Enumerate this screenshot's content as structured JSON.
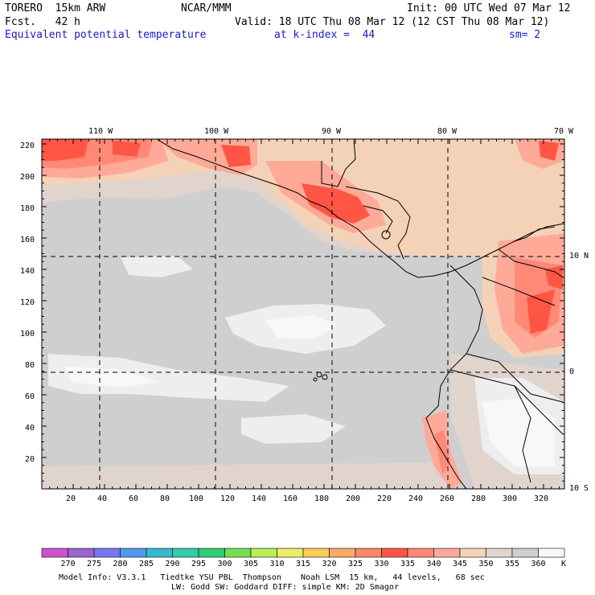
{
  "header": {
    "model": "TORERO  15km ARW",
    "org": "NCAR/MMM",
    "init": "Init: 00 UTC Wed 07 Mar 12",
    "fcst": "Fcst.   42 h",
    "valid": "Valid: 18 UTC Thu 08 Mar 12 (12 CST Thu 08 Mar 12)",
    "field": "Equivalent potential temperature",
    "level": "at k-index =  44",
    "smooth": "sm= 2"
  },
  "axes": {
    "top_lon": [
      "110 W",
      "100 W",
      "90 W",
      "80 W",
      "70 W"
    ],
    "right_lat": [
      "10 N",
      "0",
      "10 S"
    ],
    "left_y": [
      "220",
      "200",
      "180",
      "160",
      "140",
      "120",
      "100",
      "80",
      "60",
      "40",
      "20"
    ],
    "bottom_x": [
      "20",
      "40",
      "60",
      "80",
      "100",
      "120",
      "140",
      "160",
      "180",
      "200",
      "220",
      "240",
      "260",
      "280",
      "300",
      "320"
    ]
  },
  "colorbar": {
    "labels": [
      "270",
      "275",
      "280",
      "285",
      "290",
      "295",
      "300",
      "305",
      "310",
      "315",
      "320",
      "325",
      "330",
      "335",
      "340",
      "345",
      "350",
      "355",
      "360"
    ],
    "unit": "K",
    "colors": [
      "#cc55cc",
      "#9966cc",
      "#7777ee",
      "#5599ee",
      "#33bbcc",
      "#33ccaa",
      "#33cc77",
      "#77dd55",
      "#bbee55",
      "#eeee66",
      "#ffcc55",
      "#ffaa66",
      "#ff8866",
      "#ff5544",
      "#ff8877",
      "#ffaa99",
      "#f4d2b8",
      "#e0d4cc",
      "#cfcfcf",
      "#f8f8f8"
    ]
  },
  "footer": {
    "line1": "Model Info: V3.3.1   Tiedtke YSU PBL  Thompson    Noah LSM  15 km,   44 levels,   68 sec",
    "line2": "LW: Godd SW: Goddard DIFF: simple KM: 2D Smagor"
  }
}
